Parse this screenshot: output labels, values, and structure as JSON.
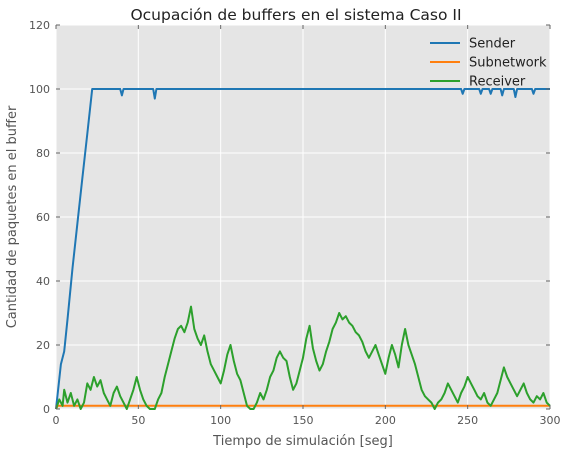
{
  "chart_data": {
    "type": "line",
    "title": "Ocupación de buffers en el sistema Caso II",
    "xlabel": "Tiempo de simulación [seg]",
    "ylabel": "Cantidad de paquetes en el buffer",
    "xlim": [
      0,
      300
    ],
    "ylim": [
      0,
      120
    ],
    "xticks": [
      "0",
      "50",
      "100",
      "150",
      "200",
      "250",
      "300"
    ],
    "yticks": [
      "0",
      "20",
      "40",
      "60",
      "80",
      "100",
      "120"
    ],
    "grid": true,
    "legend_position": "top-right",
    "series": [
      {
        "name": "Sender",
        "color": "#1f77b4",
        "points": [
          [
            0,
            0
          ],
          [
            3,
            14
          ],
          [
            5,
            18
          ],
          [
            7,
            28
          ],
          [
            10,
            44
          ],
          [
            13,
            58
          ],
          [
            16,
            72
          ],
          [
            19,
            86
          ],
          [
            22,
            100
          ],
          [
            39,
            100
          ],
          [
            40,
            98
          ],
          [
            41,
            100
          ],
          [
            59,
            100
          ],
          [
            60,
            97
          ],
          [
            61,
            100
          ],
          [
            246,
            100
          ],
          [
            247,
            98.5
          ],
          [
            248,
            100
          ],
          [
            257,
            100
          ],
          [
            258,
            98.5
          ],
          [
            259,
            100
          ],
          [
            263,
            100
          ],
          [
            264,
            98.5
          ],
          [
            265,
            100
          ],
          [
            270,
            100
          ],
          [
            271,
            98
          ],
          [
            272,
            100
          ],
          [
            278,
            100
          ],
          [
            279,
            97.5
          ],
          [
            280,
            100
          ],
          [
            289,
            100
          ],
          [
            290,
            98.5
          ],
          [
            291,
            100
          ],
          [
            300,
            100
          ]
        ]
      },
      {
        "name": "Subnetwork",
        "color": "#ff7f0e",
        "points": [
          [
            0,
            0
          ],
          [
            1,
            1
          ],
          [
            300,
            1
          ]
        ]
      },
      {
        "name": "Receiver",
        "color": "#2ca02c",
        "points": [
          [
            0,
            0
          ],
          [
            2,
            3
          ],
          [
            4,
            1
          ],
          [
            5,
            6
          ],
          [
            7,
            2
          ],
          [
            9,
            5
          ],
          [
            11,
            1
          ],
          [
            13,
            3
          ],
          [
            15,
            0
          ],
          [
            17,
            2
          ],
          [
            19,
            8
          ],
          [
            21,
            6
          ],
          [
            23,
            10
          ],
          [
            25,
            7
          ],
          [
            27,
            9
          ],
          [
            29,
            5
          ],
          [
            31,
            3
          ],
          [
            33,
            1
          ],
          [
            35,
            5
          ],
          [
            37,
            7
          ],
          [
            39,
            4
          ],
          [
            41,
            2
          ],
          [
            43,
            0
          ],
          [
            45,
            3
          ],
          [
            47,
            6
          ],
          [
            49,
            10
          ],
          [
            51,
            6
          ],
          [
            53,
            3
          ],
          [
            55,
            1
          ],
          [
            57,
            0
          ],
          [
            60,
            0
          ],
          [
            62,
            3
          ],
          [
            64,
            5
          ],
          [
            66,
            10
          ],
          [
            68,
            14
          ],
          [
            70,
            18
          ],
          [
            72,
            22
          ],
          [
            74,
            25
          ],
          [
            76,
            26
          ],
          [
            78,
            24
          ],
          [
            80,
            27
          ],
          [
            82,
            32
          ],
          [
            84,
            25
          ],
          [
            86,
            22
          ],
          [
            88,
            20
          ],
          [
            90,
            23
          ],
          [
            92,
            18
          ],
          [
            94,
            14
          ],
          [
            96,
            12
          ],
          [
            98,
            10
          ],
          [
            100,
            8
          ],
          [
            102,
            12
          ],
          [
            104,
            17
          ],
          [
            106,
            20
          ],
          [
            108,
            15
          ],
          [
            110,
            11
          ],
          [
            112,
            9
          ],
          [
            114,
            5
          ],
          [
            116,
            1
          ],
          [
            118,
            0
          ],
          [
            120,
            0
          ],
          [
            122,
            2
          ],
          [
            124,
            5
          ],
          [
            126,
            3
          ],
          [
            128,
            6
          ],
          [
            130,
            10
          ],
          [
            132,
            12
          ],
          [
            134,
            16
          ],
          [
            136,
            18
          ],
          [
            138,
            16
          ],
          [
            140,
            15
          ],
          [
            142,
            10
          ],
          [
            144,
            6
          ],
          [
            146,
            8
          ],
          [
            148,
            12
          ],
          [
            150,
            16
          ],
          [
            152,
            22
          ],
          [
            154,
            26
          ],
          [
            156,
            19
          ],
          [
            158,
            15
          ],
          [
            160,
            12
          ],
          [
            162,
            14
          ],
          [
            164,
            18
          ],
          [
            166,
            21
          ],
          [
            168,
            25
          ],
          [
            170,
            27
          ],
          [
            172,
            30
          ],
          [
            174,
            28
          ],
          [
            176,
            29
          ],
          [
            178,
            27
          ],
          [
            180,
            26
          ],
          [
            182,
            24
          ],
          [
            184,
            23
          ],
          [
            186,
            21
          ],
          [
            188,
            18
          ],
          [
            190,
            16
          ],
          [
            192,
            18
          ],
          [
            194,
            20
          ],
          [
            196,
            17
          ],
          [
            198,
            14
          ],
          [
            200,
            11
          ],
          [
            202,
            16
          ],
          [
            204,
            20
          ],
          [
            206,
            17
          ],
          [
            208,
            13
          ],
          [
            210,
            20
          ],
          [
            212,
            25
          ],
          [
            214,
            20
          ],
          [
            216,
            17
          ],
          [
            218,
            14
          ],
          [
            220,
            10
          ],
          [
            222,
            6
          ],
          [
            224,
            4
          ],
          [
            226,
            3
          ],
          [
            228,
            2
          ],
          [
            230,
            0
          ],
          [
            232,
            2
          ],
          [
            234,
            3
          ],
          [
            236,
            5
          ],
          [
            238,
            8
          ],
          [
            240,
            6
          ],
          [
            242,
            4
          ],
          [
            244,
            2
          ],
          [
            246,
            5
          ],
          [
            248,
            7
          ],
          [
            250,
            10
          ],
          [
            252,
            8
          ],
          [
            254,
            6
          ],
          [
            256,
            4
          ],
          [
            258,
            3
          ],
          [
            260,
            5
          ],
          [
            262,
            2
          ],
          [
            264,
            1
          ],
          [
            266,
            3
          ],
          [
            268,
            5
          ],
          [
            270,
            9
          ],
          [
            272,
            13
          ],
          [
            274,
            10
          ],
          [
            276,
            8
          ],
          [
            278,
            6
          ],
          [
            280,
            4
          ],
          [
            282,
            6
          ],
          [
            284,
            8
          ],
          [
            286,
            5
          ],
          [
            288,
            3
          ],
          [
            290,
            2
          ],
          [
            292,
            4
          ],
          [
            294,
            3
          ],
          [
            296,
            5
          ],
          [
            298,
            2
          ],
          [
            300,
            1
          ]
        ]
      }
    ]
  }
}
